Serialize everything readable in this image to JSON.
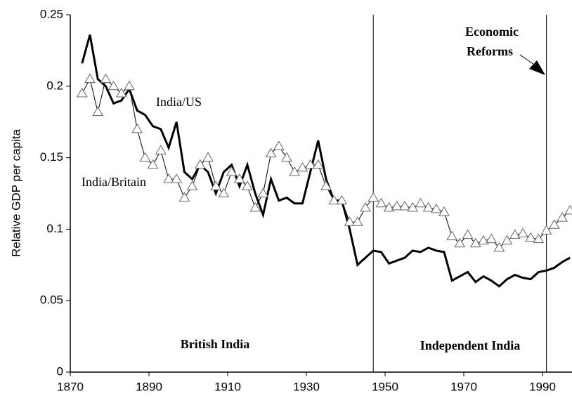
{
  "chart_data": {
    "type": "line",
    "y_label": "Relative GDP per capita",
    "x": [
      1873,
      1875,
      1877,
      1879,
      1881,
      1883,
      1885,
      1887,
      1889,
      1891,
      1893,
      1895,
      1897,
      1899,
      1901,
      1903,
      1905,
      1907,
      1909,
      1911,
      1913,
      1915,
      1917,
      1919,
      1921,
      1923,
      1925,
      1927,
      1929,
      1931,
      1933,
      1935,
      1937,
      1939,
      1941,
      1943,
      1945,
      1947,
      1949,
      1951,
      1953,
      1955,
      1957,
      1959,
      1961,
      1963,
      1965,
      1967,
      1969,
      1971,
      1973,
      1975,
      1977,
      1979,
      1981,
      1983,
      1985,
      1987,
      1989,
      1991,
      1993,
      1995,
      1997
    ],
    "series": [
      {
        "name": "India/US",
        "color": "#000000",
        "values": [
          0.216,
          0.236,
          0.205,
          0.2,
          0.188,
          0.19,
          0.198,
          0.183,
          0.18,
          0.172,
          0.17,
          0.157,
          0.175,
          0.14,
          0.135,
          0.145,
          0.14,
          0.125,
          0.14,
          0.145,
          0.13,
          0.145,
          0.125,
          0.11,
          0.135,
          0.12,
          0.122,
          0.118,
          0.118,
          0.14,
          0.162,
          0.135,
          0.12,
          0.12,
          0.1,
          0.075,
          0.08,
          0.085,
          0.084,
          0.076,
          0.078,
          0.08,
          0.085,
          0.084,
          0.087,
          0.085,
          0.084,
          0.064,
          0.067,
          0.07,
          0.063,
          0.067,
          0.064,
          0.06,
          0.065,
          0.068,
          0.066,
          0.065,
          0.07,
          0.071,
          0.073,
          0.077,
          0.08
        ]
      },
      {
        "name": "India/Britain",
        "color": "#666666",
        "values": [
          0.195,
          0.205,
          0.182,
          0.205,
          0.2,
          0.195,
          0.2,
          0.17,
          0.15,
          0.145,
          0.155,
          0.135,
          0.135,
          0.122,
          0.13,
          0.145,
          0.15,
          0.13,
          0.125,
          0.14,
          0.135,
          0.13,
          0.115,
          0.125,
          0.153,
          0.158,
          0.15,
          0.14,
          0.143,
          0.145,
          0.145,
          0.13,
          0.12,
          0.12,
          0.105,
          0.105,
          0.115,
          0.122,
          0.118,
          0.115,
          0.116,
          0.116,
          0.115,
          0.118,
          0.115,
          0.114,
          0.112,
          0.095,
          0.09,
          0.096,
          0.09,
          0.092,
          0.093,
          0.087,
          0.092,
          0.096,
          0.097,
          0.094,
          0.093,
          0.099,
          0.103,
          0.108,
          0.113
        ]
      }
    ],
    "xlim": [
      1870,
      1997.5
    ],
    "xticks": [
      1870,
      1890,
      1910,
      1930,
      1950,
      1970,
      1990
    ],
    "ylim": [
      0,
      0.25
    ],
    "yticks": [
      0,
      0.05,
      0.1,
      0.15,
      0.2,
      0.25
    ],
    "vlines": [
      1947,
      1991
    ],
    "annotations": [
      "British India",
      "Independent India",
      "Economic",
      "Reforms"
    ]
  }
}
